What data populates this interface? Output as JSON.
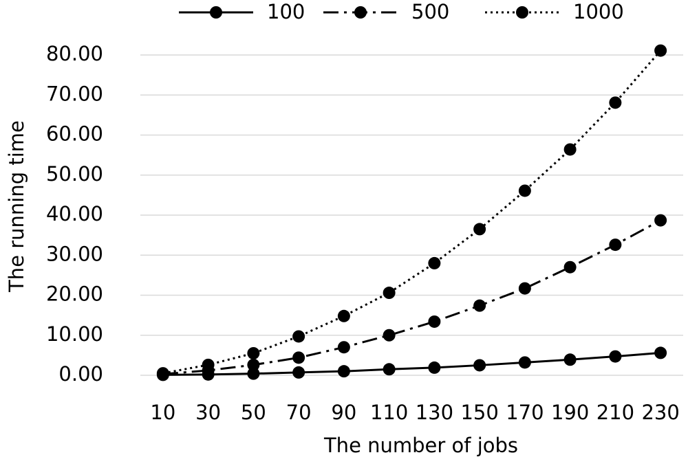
{
  "chart_data": {
    "type": "line",
    "x_label": "The number of jobs",
    "y_label": "The running time",
    "categories": [
      "10",
      "30",
      "50",
      "70",
      "90",
      "110",
      "130",
      "150",
      "170",
      "190",
      "210",
      "230"
    ],
    "series": [
      {
        "name": "100",
        "color": "#000000",
        "dash": "solid",
        "values": [
          0.1,
          0.2,
          0.4,
          0.7,
          1.0,
          1.5,
          1.9,
          2.5,
          3.2,
          3.9,
          4.7,
          5.6
        ]
      },
      {
        "name": "500",
        "color": "#000000",
        "dash": "dashdot",
        "values": [
          0.3,
          1.2,
          2.6,
          4.4,
          7.0,
          10.0,
          13.4,
          17.4,
          21.7,
          27.0,
          32.6,
          38.7
        ]
      },
      {
        "name": "1000",
        "color": "#000000",
        "dash": "dotted",
        "values": [
          0.5,
          2.6,
          5.5,
          9.7,
          14.8,
          20.6,
          28.0,
          36.5,
          46.1,
          56.4,
          68.1,
          81.1
        ]
      }
    ],
    "ylim": [
      0,
      80
    ],
    "yticks": [
      {
        "value": 0,
        "label": "0.00"
      },
      {
        "value": 10,
        "label": "10.00"
      },
      {
        "value": 20,
        "label": "20.00"
      },
      {
        "value": 30,
        "label": "30.00"
      },
      {
        "value": 40,
        "label": "40.00"
      },
      {
        "value": 50,
        "label": "50.00"
      },
      {
        "value": 60,
        "label": "60.00"
      },
      {
        "value": 70,
        "label": "70.00"
      },
      {
        "value": 80,
        "label": "80.00"
      }
    ],
    "grid": true,
    "legend": "top"
  }
}
